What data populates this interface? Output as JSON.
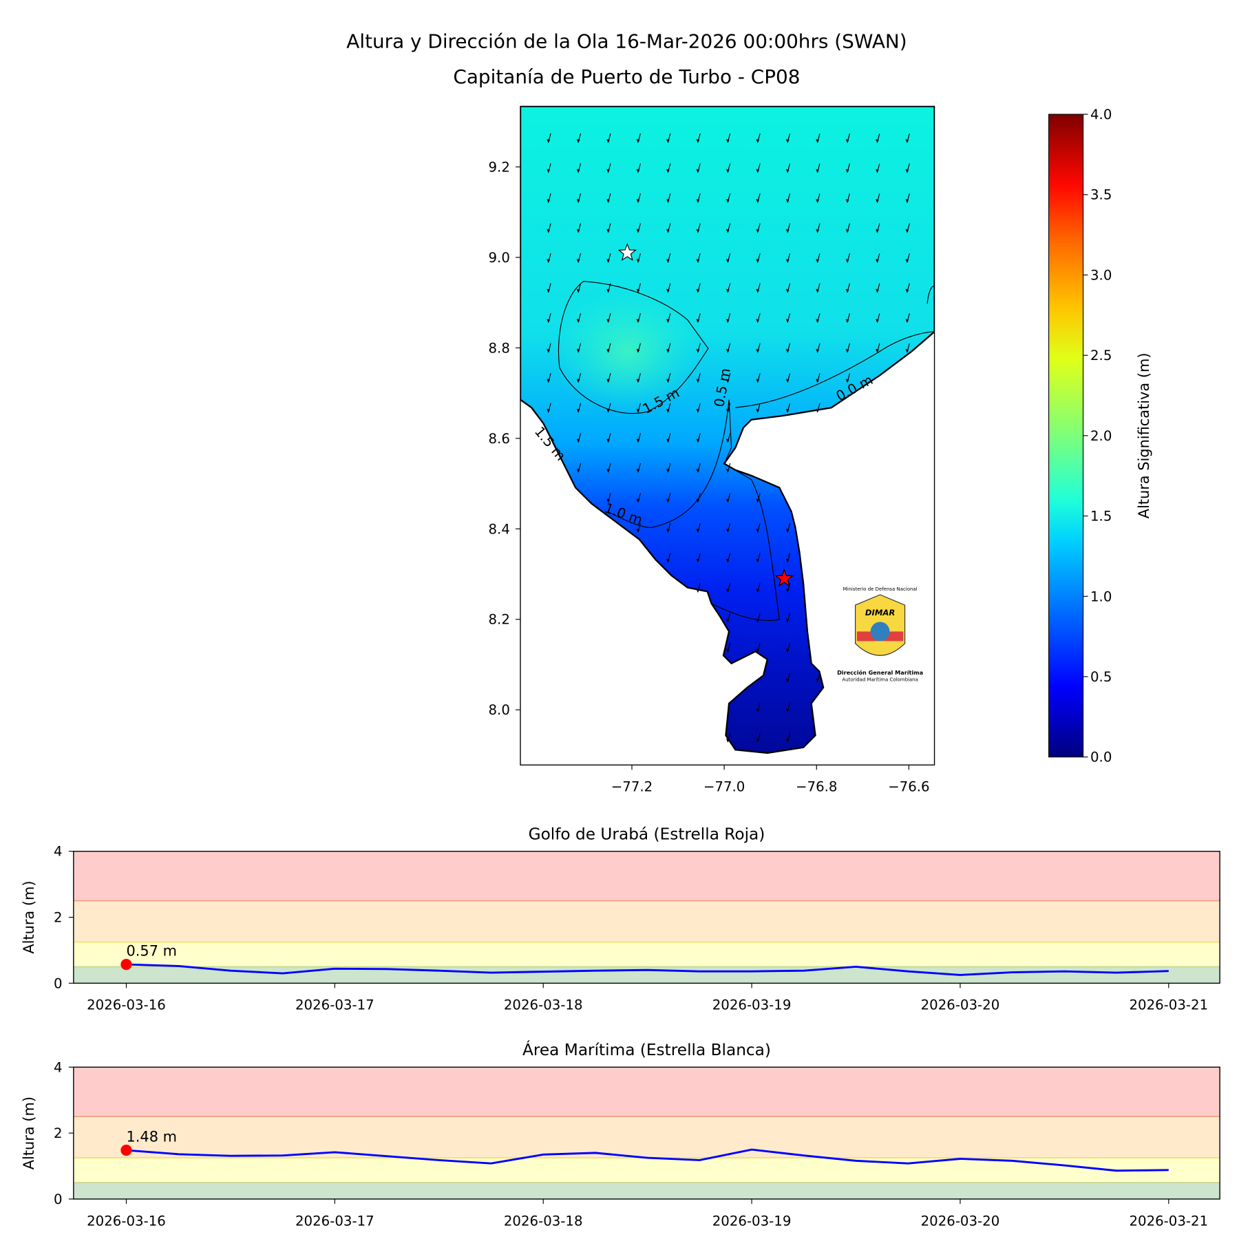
{
  "title_line1": "Altura y Dirección de la Ola 16-Mar-2026 00:00hrs (SWAN)",
  "title_line2": "Capitanía de Puerto de Turbo - CP08",
  "chart_data": [
    {
      "type": "heatmap",
      "title": "Altura y Dirección de la Ola 16-Mar-2026 00:00hrs (SWAN)",
      "xticks": [
        "−77.2",
        "−77.0",
        "−76.8",
        "−76.6"
      ],
      "xtick_values": [
        -77.2,
        -77.0,
        -76.8,
        -76.6
      ],
      "yticks": [
        "8.0",
        "8.2",
        "8.4",
        "8.6",
        "8.8",
        "9.0",
        "9.2"
      ],
      "yticks_values": [
        8.0,
        8.2,
        8.4,
        8.6,
        8.8,
        9.0,
        9.2
      ],
      "xlim": [
        -77.38,
        -76.48
      ],
      "ylim": [
        7.88,
        9.33
      ],
      "contour_labels": [
        "1.5 m",
        "1.5 m",
        "1.0 m",
        "0.0 m",
        "0.5 m"
      ],
      "markers": [
        {
          "name": "Estrella Blanca",
          "lon": -77.21,
          "lat": 9.01,
          "color": "#ffffff"
        },
        {
          "name": "Estrella Roja",
          "lon": -76.87,
          "lat": 8.29,
          "color": "#ff0000"
        }
      ],
      "colorbar": {
        "label": "Altura Significativa (m)",
        "range": [
          0,
          4
        ],
        "ticks": [
          "0.0",
          "0.5",
          "1.0",
          "1.5",
          "2.0",
          "2.5",
          "3.0",
          "3.5",
          "4.0"
        ],
        "colormap": "jet"
      },
      "logo": {
        "top": "Ministerio de Defensa Nacional",
        "name": "DIMAR",
        "bottom1": "Dirección General Marítima",
        "bottom2": "Autoridad Marítima Colombiana"
      }
    },
    {
      "type": "line",
      "title": "Golfo de Urabá (Estrella Roja)",
      "ylabel": "Altura (m)",
      "ylim": [
        0,
        4
      ],
      "yticks": [
        "0",
        "2",
        "4"
      ],
      "xticks": [
        "2026-03-16",
        "2026-03-17",
        "2026-03-18",
        "2026-03-19",
        "2026-03-20",
        "2026-03-21"
      ],
      "x_days": [
        0,
        0.25,
        0.5,
        0.75,
        1,
        1.25,
        1.5,
        1.75,
        2,
        2.25,
        2.5,
        2.75,
        3,
        3.25,
        3.5,
        3.75,
        4,
        4.25,
        4.5,
        4.75,
        5
      ],
      "values": [
        0.57,
        0.52,
        0.38,
        0.3,
        0.44,
        0.43,
        0.38,
        0.32,
        0.35,
        0.38,
        0.4,
        0.36,
        0.36,
        0.38,
        0.5,
        0.36,
        0.25,
        0.33,
        0.36,
        0.32,
        0.37
      ],
      "current_label": "0.57 m",
      "bands": [
        0.5,
        1.25,
        2.5,
        4
      ]
    },
    {
      "type": "line",
      "title": "Área Marítima (Estrella Blanca)",
      "ylabel": "Altura (m)",
      "ylim": [
        0,
        4
      ],
      "yticks": [
        "0",
        "2",
        "4"
      ],
      "xticks": [
        "2026-03-16",
        "2026-03-17",
        "2026-03-18",
        "2026-03-19",
        "2026-03-20",
        "2026-03-21"
      ],
      "x_days": [
        0,
        0.25,
        0.5,
        0.75,
        1,
        1.25,
        1.5,
        1.75,
        2,
        2.25,
        2.5,
        2.75,
        3,
        3.25,
        3.5,
        3.75,
        4,
        4.25,
        4.5,
        4.75,
        5
      ],
      "values": [
        1.48,
        1.36,
        1.31,
        1.32,
        1.42,
        1.3,
        1.18,
        1.08,
        1.35,
        1.4,
        1.25,
        1.18,
        1.5,
        1.32,
        1.16,
        1.08,
        1.22,
        1.16,
        1.02,
        0.86,
        0.88
      ],
      "current_label": "1.48 m",
      "bands": [
        0.5,
        1.25,
        2.5,
        4
      ]
    }
  ]
}
